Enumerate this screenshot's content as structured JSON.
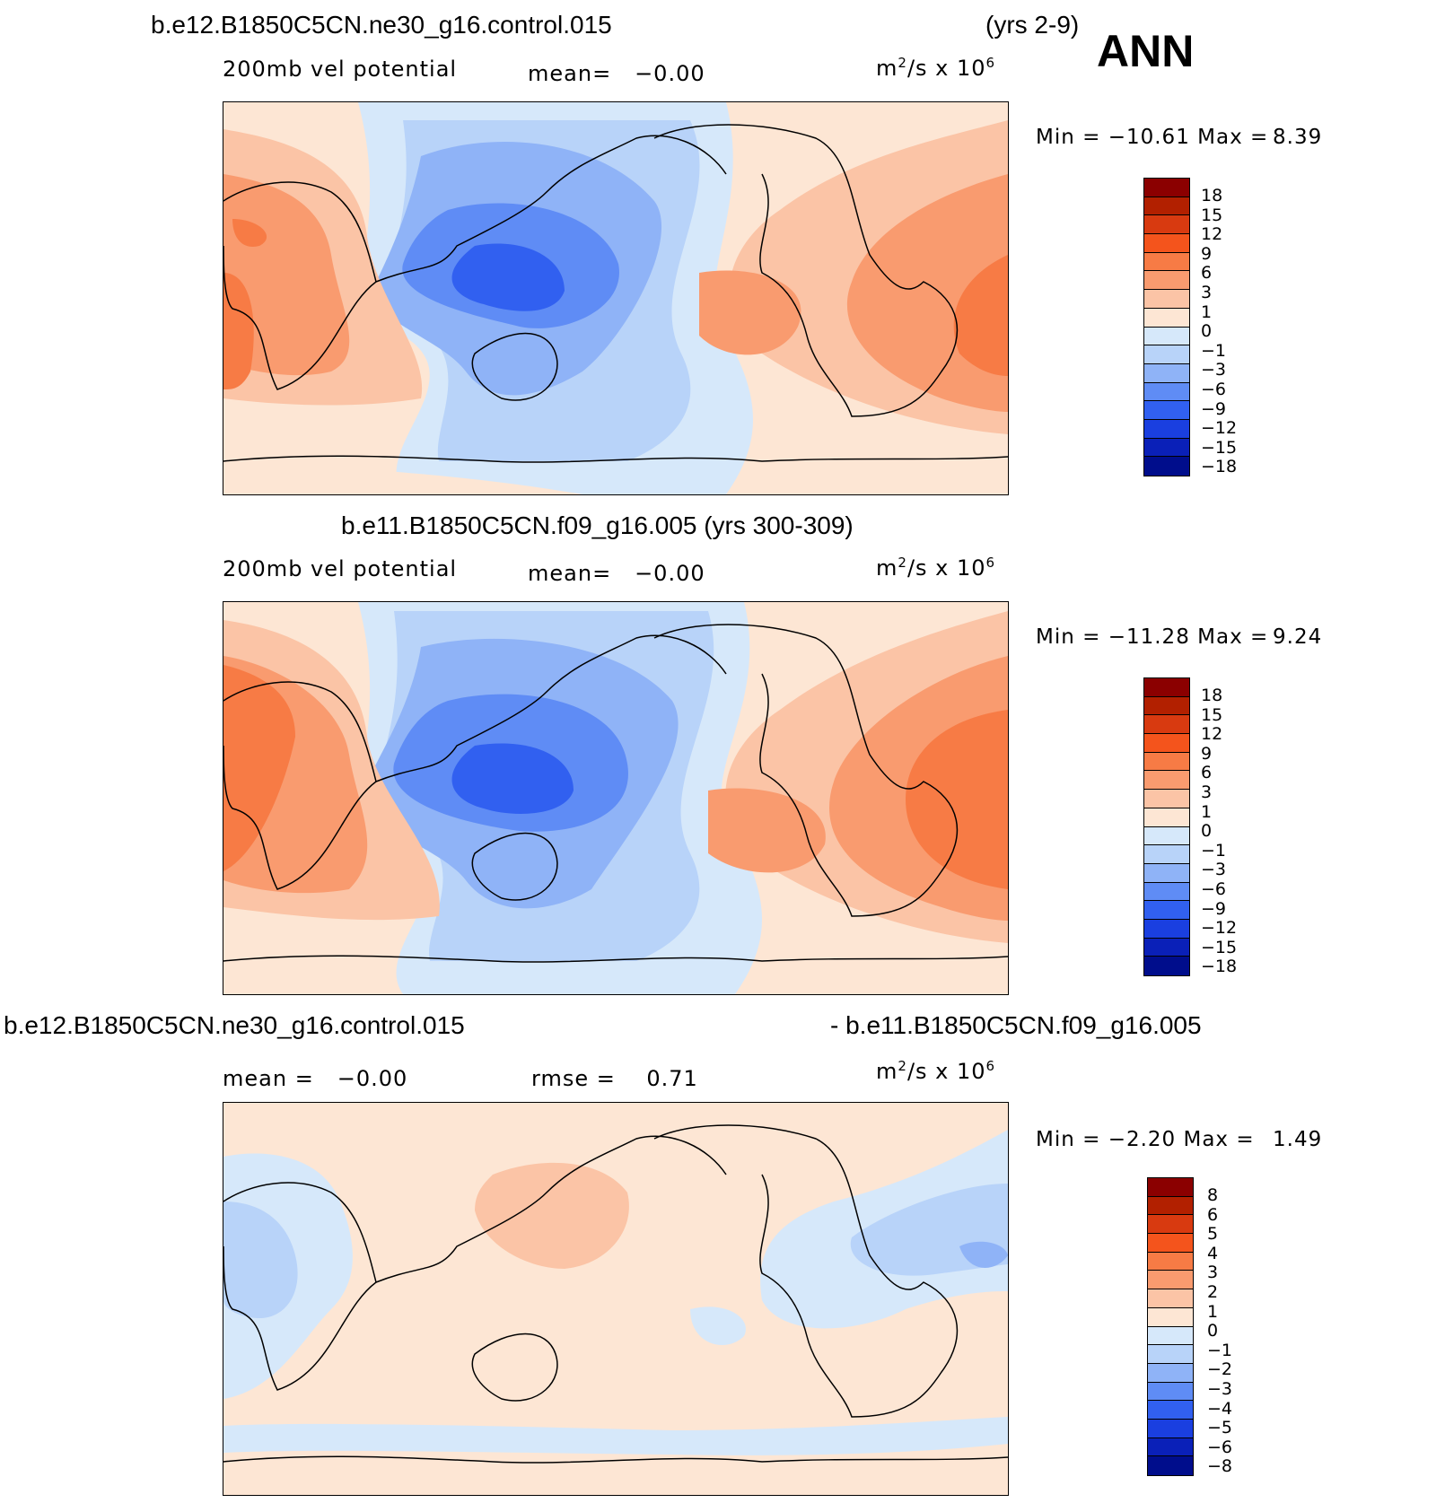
{
  "season": "ANN",
  "panel1": {
    "case_title": "b.e12.B1850C5CN.ne30_g16.control.015",
    "years": "(yrs 2-9)",
    "variable": "200mb vel potential",
    "mean_label": "mean=",
    "mean_value": "−0.00",
    "units_base": "m",
    "units_exp": "2",
    "units_mid": "/s x 10",
    "units_pow": "6",
    "minmax": "Min = −10.61 Max =",
    "max_value": "8.39",
    "colorbar_labels": [
      "18",
      "15",
      "12",
      "9",
      "6",
      "3",
      "1",
      "0",
      "−1",
      "−3",
      "−6",
      "−9",
      "−12",
      "−15",
      "−18"
    ]
  },
  "panel2": {
    "case_title": "b.e11.B1850C5CN.f09_g16.005 (yrs 300-309)",
    "variable": "200mb vel potential",
    "mean_label": "mean=",
    "mean_value": "−0.00",
    "units_base": "m",
    "units_exp": "2",
    "units_mid": "/s x 10",
    "units_pow": "6",
    "minmax": "Min = −11.28 Max =",
    "max_value": "9.24",
    "colorbar_labels": [
      "18",
      "15",
      "12",
      "9",
      "6",
      "3",
      "1",
      "0",
      "−1",
      "−3",
      "−6",
      "−9",
      "−12",
      "−15",
      "−18"
    ]
  },
  "panel3": {
    "case_left": "b.e12.B1850C5CN.ne30_g16.control.015",
    "case_right": "- b.e11.B1850C5CN.f09_g16.005",
    "mean_label": "mean =",
    "mean_value": "−0.00",
    "rmse_label": "rmse =",
    "rmse_value": "0.71",
    "units_base": "m",
    "units_exp": "2",
    "units_mid": "/s x 10",
    "units_pow": "6",
    "minmax": "Min = −2.20 Max =",
    "max_value": "1.49",
    "colorbar_labels": [
      "8",
      "6",
      "5",
      "4",
      "3",
      "2",
      "1",
      "0",
      "−1",
      "−2",
      "−3",
      "−4",
      "−5",
      "−6",
      "−8"
    ]
  },
  "colors": {
    "scale": [
      "#8b0000",
      "#b22000",
      "#d83a10",
      "#f4541c",
      "#f77b45",
      "#f99b6f",
      "#fbc4a6",
      "#fde6d4",
      "#d6e8fa",
      "#b8d3f9",
      "#8fb3f7",
      "#5f8cf5",
      "#3160f0",
      "#1a3fe0",
      "#0a20b8",
      "#000d8c"
    ]
  }
}
